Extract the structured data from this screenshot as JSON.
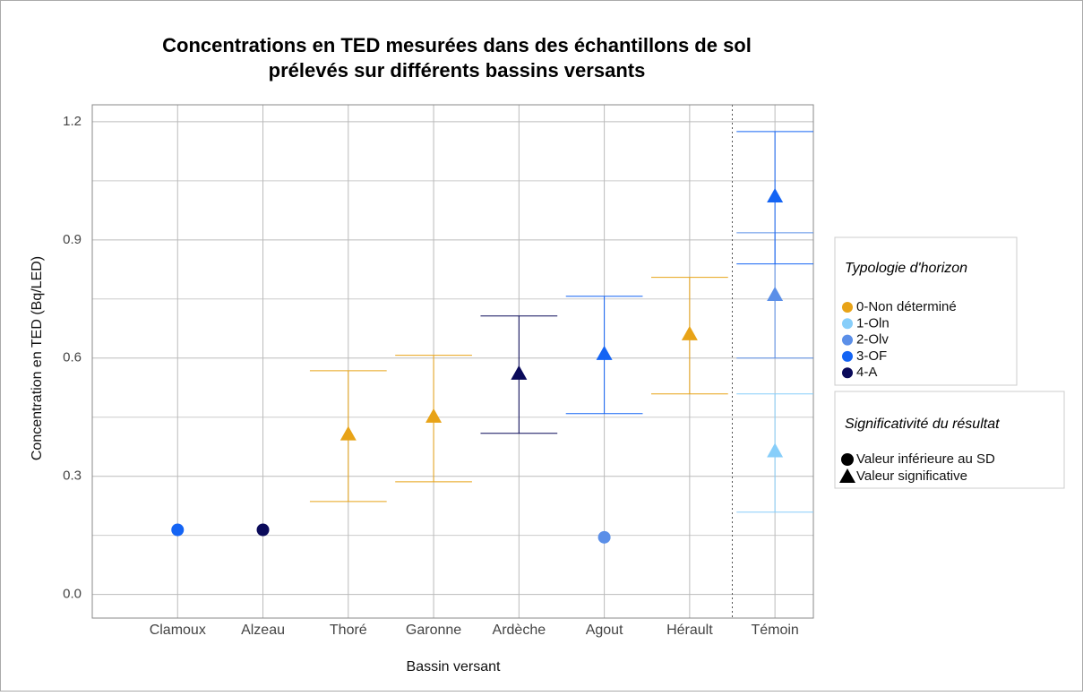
{
  "chart_data": {
    "type": "errorbar",
    "title": [
      "Concentrations en TED mesurées dans des échantillons de sol",
      "prélevés sur différents bassins versants"
    ],
    "xlabel": "Bassin versant",
    "ylabel": "Concentration en TED (Bq/LED)",
    "categories": [
      "Clamoux",
      "Alzeau",
      "Thoré",
      "Garonne",
      "Ardèche",
      "Agout",
      "Hérault",
      "Témoin"
    ],
    "ylim": [
      -0.06,
      1.243
    ],
    "yticks": [
      {
        "value": 0,
        "label": "0.0"
      },
      0.3,
      0.6,
      0.9,
      1.2
    ],
    "yminor": [
      0.15,
      0.45,
      0.75,
      1.05
    ],
    "grid": true,
    "legend_title": "Typologie d'horizon",
    "shape_legend_title": "Significativité du résultat",
    "shapes": [
      {
        "name": "Valeur inférieure au SD",
        "marker": "circle"
      },
      {
        "name": "Valeur significative",
        "marker": "triangle"
      }
    ],
    "series": [
      {
        "name": "0-Non déterminé",
        "color": "#E8A317",
        "values": [
          null,
          null,
          0.407,
          0.452,
          null,
          null,
          0.661,
          null
        ],
        "lower": [
          null,
          null,
          0.236,
          0.286,
          null,
          null,
          0.509,
          null
        ],
        "upper": [
          null,
          null,
          0.568,
          0.607,
          null,
          null,
          0.805,
          null
        ],
        "marker": [
          null,
          null,
          "triangle",
          "triangle",
          null,
          null,
          "triangle",
          null
        ]
      },
      {
        "name": "1-Oln",
        "color": "#87CEFA",
        "values": [
          null,
          null,
          null,
          null,
          null,
          null,
          null,
          0.364
        ],
        "lower": [
          null,
          null,
          null,
          null,
          null,
          null,
          null,
          0.209
        ],
        "upper": [
          null,
          null,
          null,
          null,
          null,
          null,
          null,
          0.509
        ],
        "marker": [
          null,
          null,
          null,
          null,
          null,
          null,
          null,
          "triangle"
        ]
      },
      {
        "name": "2-Olv",
        "color": "#5B8FE8",
        "values": [
          null,
          null,
          null,
          null,
          null,
          0.145,
          null,
          0.761
        ],
        "lower": [
          null,
          null,
          null,
          null,
          null,
          null,
          null,
          0.6
        ],
        "upper": [
          null,
          null,
          null,
          null,
          null,
          null,
          null,
          0.918
        ],
        "marker": [
          null,
          null,
          null,
          null,
          null,
          "circle",
          null,
          "triangle"
        ]
      },
      {
        "name": "3-OF",
        "color": "#1464F4",
        "values": [
          0.164,
          null,
          null,
          null,
          null,
          0.611,
          null,
          1.011
        ],
        "lower": [
          null,
          null,
          null,
          null,
          null,
          0.459,
          null,
          0.839
        ],
        "upper": [
          null,
          null,
          null,
          null,
          null,
          0.757,
          null,
          1.175
        ],
        "marker": [
          "circle",
          null,
          null,
          null,
          null,
          "triangle",
          null,
          "triangle"
        ]
      },
      {
        "name": "4-A",
        "color": "#0A0A5A",
        "values": [
          null,
          0.164,
          null,
          null,
          0.561,
          null,
          null,
          null
        ],
        "lower": [
          null,
          null,
          null,
          null,
          0.409,
          null,
          null,
          null
        ],
        "upper": [
          null,
          null,
          null,
          null,
          0.707,
          null,
          null,
          null
        ],
        "marker": [
          null,
          "circle",
          null,
          null,
          "triangle",
          null,
          null,
          null
        ]
      }
    ]
  }
}
